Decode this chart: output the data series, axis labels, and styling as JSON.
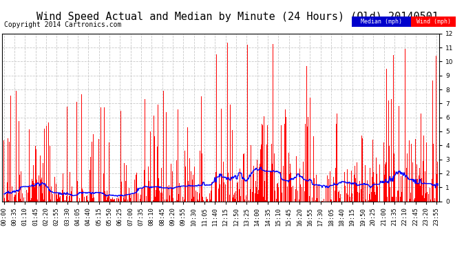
{
  "title": "Wind Speed Actual and Median by Minute (24 Hours) (Old) 20140501",
  "copyright": "Copyright 2014 Cartronics.com",
  "ylim": [
    0.0,
    12.0
  ],
  "yticks": [
    0.0,
    1.0,
    2.0,
    3.0,
    4.0,
    5.0,
    6.0,
    7.0,
    8.0,
    9.0,
    10.0,
    11.0,
    12.0
  ],
  "wind_color": "#FF0000",
  "median_color": "#0000FF",
  "background_color": "#FFFFFF",
  "grid_color": "#C8C8C8",
  "legend_median_bg": "#0000CC",
  "legend_wind_bg": "#FF0000",
  "title_fontsize": 11,
  "copyright_fontsize": 7,
  "tick_label_fontsize": 6.5,
  "seed": 42
}
